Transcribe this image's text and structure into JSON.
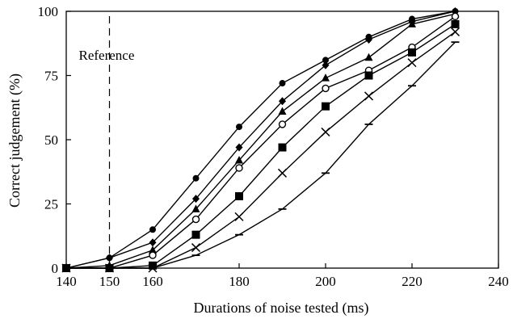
{
  "chart_data": {
    "type": "line",
    "title": "",
    "xlabel": "Durations of noise tested (ms)",
    "ylabel": "Correct judgement (%)",
    "xlim": [
      140,
      240
    ],
    "ylim": [
      0,
      100
    ],
    "xticks": [
      140,
      150,
      160,
      180,
      200,
      220,
      240
    ],
    "yticks": [
      0,
      25,
      50,
      75,
      100
    ],
    "grid": false,
    "legend": "none",
    "annotations": [
      {
        "text": "Reference",
        "x_ref": 150
      }
    ],
    "x": [
      140,
      150,
      160,
      170,
      180,
      190,
      200,
      210,
      220,
      230
    ],
    "series": [
      {
        "marker": "circle-filled",
        "values": [
          0,
          4,
          15,
          35,
          55,
          72,
          81,
          90,
          97,
          100
        ]
      },
      {
        "marker": "diamond",
        "values": [
          0,
          4,
          10,
          27,
          47,
          65,
          79,
          89,
          96,
          100
        ]
      },
      {
        "marker": "triangle",
        "values": [
          0,
          1,
          7,
          23,
          42,
          61,
          74,
          82,
          95,
          99
        ]
      },
      {
        "marker": "circle-open",
        "values": [
          0,
          0,
          5,
          19,
          39,
          56,
          70,
          77,
          86,
          98
        ]
      },
      {
        "marker": "square",
        "values": [
          0,
          0,
          1,
          13,
          28,
          47,
          63,
          75,
          84,
          95
        ]
      },
      {
        "marker": "cross",
        "values": [
          0,
          0,
          0,
          8,
          20,
          37,
          53,
          67,
          80,
          92
        ]
      },
      {
        "marker": "dash",
        "values": [
          0,
          0,
          0,
          5,
          13,
          23,
          37,
          56,
          71,
          88
        ]
      }
    ]
  }
}
